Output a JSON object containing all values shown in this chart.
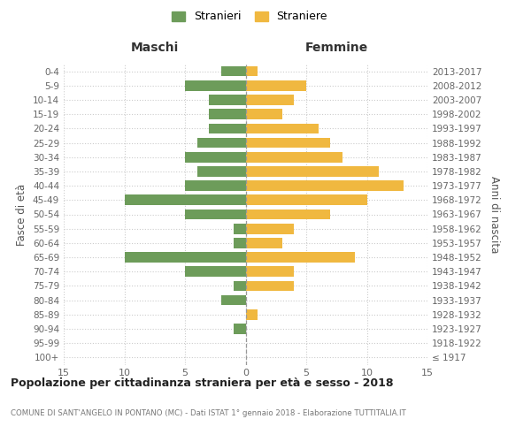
{
  "age_groups": [
    "0-4",
    "5-9",
    "10-14",
    "15-19",
    "20-24",
    "25-29",
    "30-34",
    "35-39",
    "40-44",
    "45-49",
    "50-54",
    "55-59",
    "60-64",
    "65-69",
    "70-74",
    "75-79",
    "80-84",
    "85-89",
    "90-94",
    "95-99",
    "100+"
  ],
  "birth_years": [
    "2013-2017",
    "2008-2012",
    "2003-2007",
    "1998-2002",
    "1993-1997",
    "1988-1992",
    "1983-1987",
    "1978-1982",
    "1973-1977",
    "1968-1972",
    "1963-1967",
    "1958-1962",
    "1953-1957",
    "1948-1952",
    "1943-1947",
    "1938-1942",
    "1933-1937",
    "1928-1932",
    "1923-1927",
    "1918-1922",
    "≤ 1917"
  ],
  "maschi": [
    2,
    5,
    3,
    3,
    3,
    4,
    5,
    4,
    5,
    10,
    5,
    1,
    1,
    10,
    5,
    1,
    2,
    0,
    1,
    0,
    0
  ],
  "femmine": [
    1,
    5,
    4,
    3,
    6,
    7,
    8,
    11,
    13,
    10,
    7,
    4,
    3,
    9,
    4,
    4,
    0,
    1,
    0,
    0,
    0
  ],
  "maschi_color": "#6d9c5a",
  "femmine_color": "#f0b840",
  "background_color": "#ffffff",
  "grid_color": "#cccccc",
  "title": "Popolazione per cittadinanza straniera per età e sesso - 2018",
  "subtitle": "COMUNE DI SANT'ANGELO IN PONTANO (MC) - Dati ISTAT 1° gennaio 2018 - Elaborazione TUTTITALIA.IT",
  "xlabel_left": "Maschi",
  "xlabel_right": "Femmine",
  "ylabel_left": "Fasce di età",
  "ylabel_right": "Anni di nascita",
  "legend_maschi": "Stranieri",
  "legend_femmine": "Straniere",
  "xlim": 15,
  "dashed_line_color": "#999999"
}
